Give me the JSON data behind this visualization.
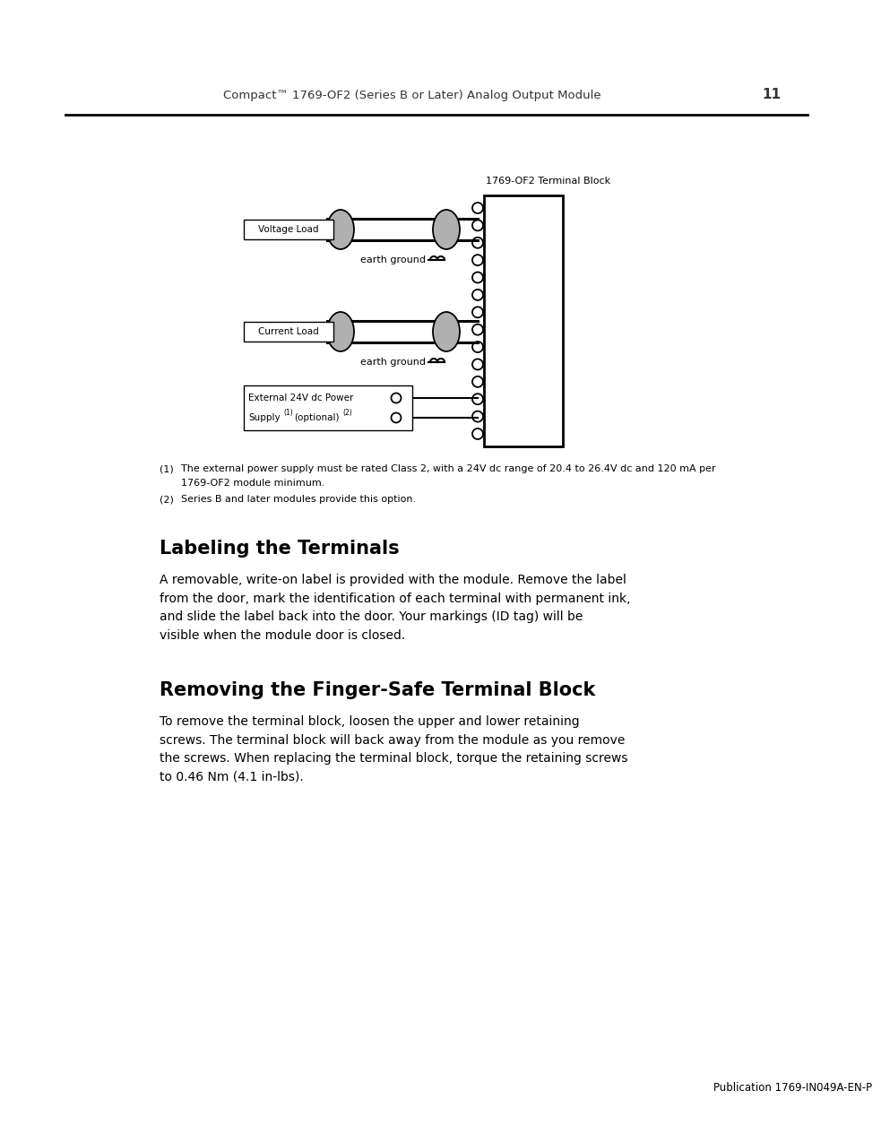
{
  "page_header": "Compact™ 1769-OF2 (Series B or Later) Analog Output Module",
  "page_number": "11",
  "diagram_label": "1769-OF2 Terminal Block",
  "voltage_load_label": "Voltage Load",
  "current_load_label": "Current Load",
  "earth_ground_label": "earth ground",
  "footnote1_num": "(1)",
  "footnote1_text": "The external power supply must be rated Class 2, with a 24V dc range of 20.4 to 26.4V dc and 120 mA per",
  "footnote1_cont": "1769-OF2 module minimum.",
  "footnote2_num": "(2)",
  "footnote2_text": "Series B and later modules provide this option.",
  "section1_title": "Labeling the Terminals",
  "section1_body": "A removable, write-on label is provided with the module. Remove the label\nfrom the door, mark the identification of each terminal with permanent ink,\nand slide the label back into the door. Your markings (ID tag) will be\nvisible when the module door is closed.",
  "section2_title": "Removing the Finger-Safe Terminal Block",
  "section2_body": "To remove the terminal block, loosen the upper and lower retaining\nscrews. The terminal block will back away from the module as you remove\nthe screws. When replacing the terminal block, torque the retaining screws\nto 0.46 Nm (4.1 in-lbs).",
  "ext_power_line1": "External 24V dc Power",
  "ext_power_line2_pre": "Supply",
  "ext_power_line2_sup1": "(1)",
  "ext_power_line2_mid": "(optional)",
  "ext_power_line2_sup2": "(2)",
  "footer": "Publication 1769-IN049A-EN-P",
  "bg_color": "#ffffff",
  "text_color": "#000000",
  "connector_fill": "#b0b0b0"
}
